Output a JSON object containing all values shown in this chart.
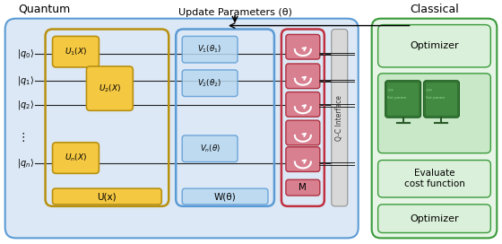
{
  "fig_width": 5.6,
  "fig_height": 2.72,
  "dpi": 100,
  "title_quantum": "Quantum",
  "title_classical": "Classical",
  "title_update": "Update Parameters (θ)",
  "label_ux": "U(x)",
  "label_wtheta": "W(θ)",
  "label_M": "M",
  "label_qc": "Q-C Interface",
  "label_optimizer_top": "Optimizer",
  "label_evaluate": "Evaluate\ncost function",
  "label_optimizer_bot": "Optimizer",
  "bg_quantum_color": "#dce8f5",
  "bg_classical_color": "#e6f5e6",
  "border_quantum_color": "#5b9bd5",
  "border_classical_color": "#3a9a3a",
  "u_box_color": "#f5c842",
  "u_box_border": "#b89010",
  "v_box_color": "#b8d8f0",
  "v_box_border": "#5b9bd5",
  "m_box_color": "#d88090",
  "m_box_border": "#b03040",
  "m_border_outer": "#c03040",
  "qc_bar_color": "#d8d8d8",
  "wire_color": "#222222",
  "u_outer_border": "#b89010",
  "computer_screen_color": "#3a7a3a",
  "computer_screen_light": "#4a9a4a",
  "classical_inner_bg": "#c8e8c8"
}
